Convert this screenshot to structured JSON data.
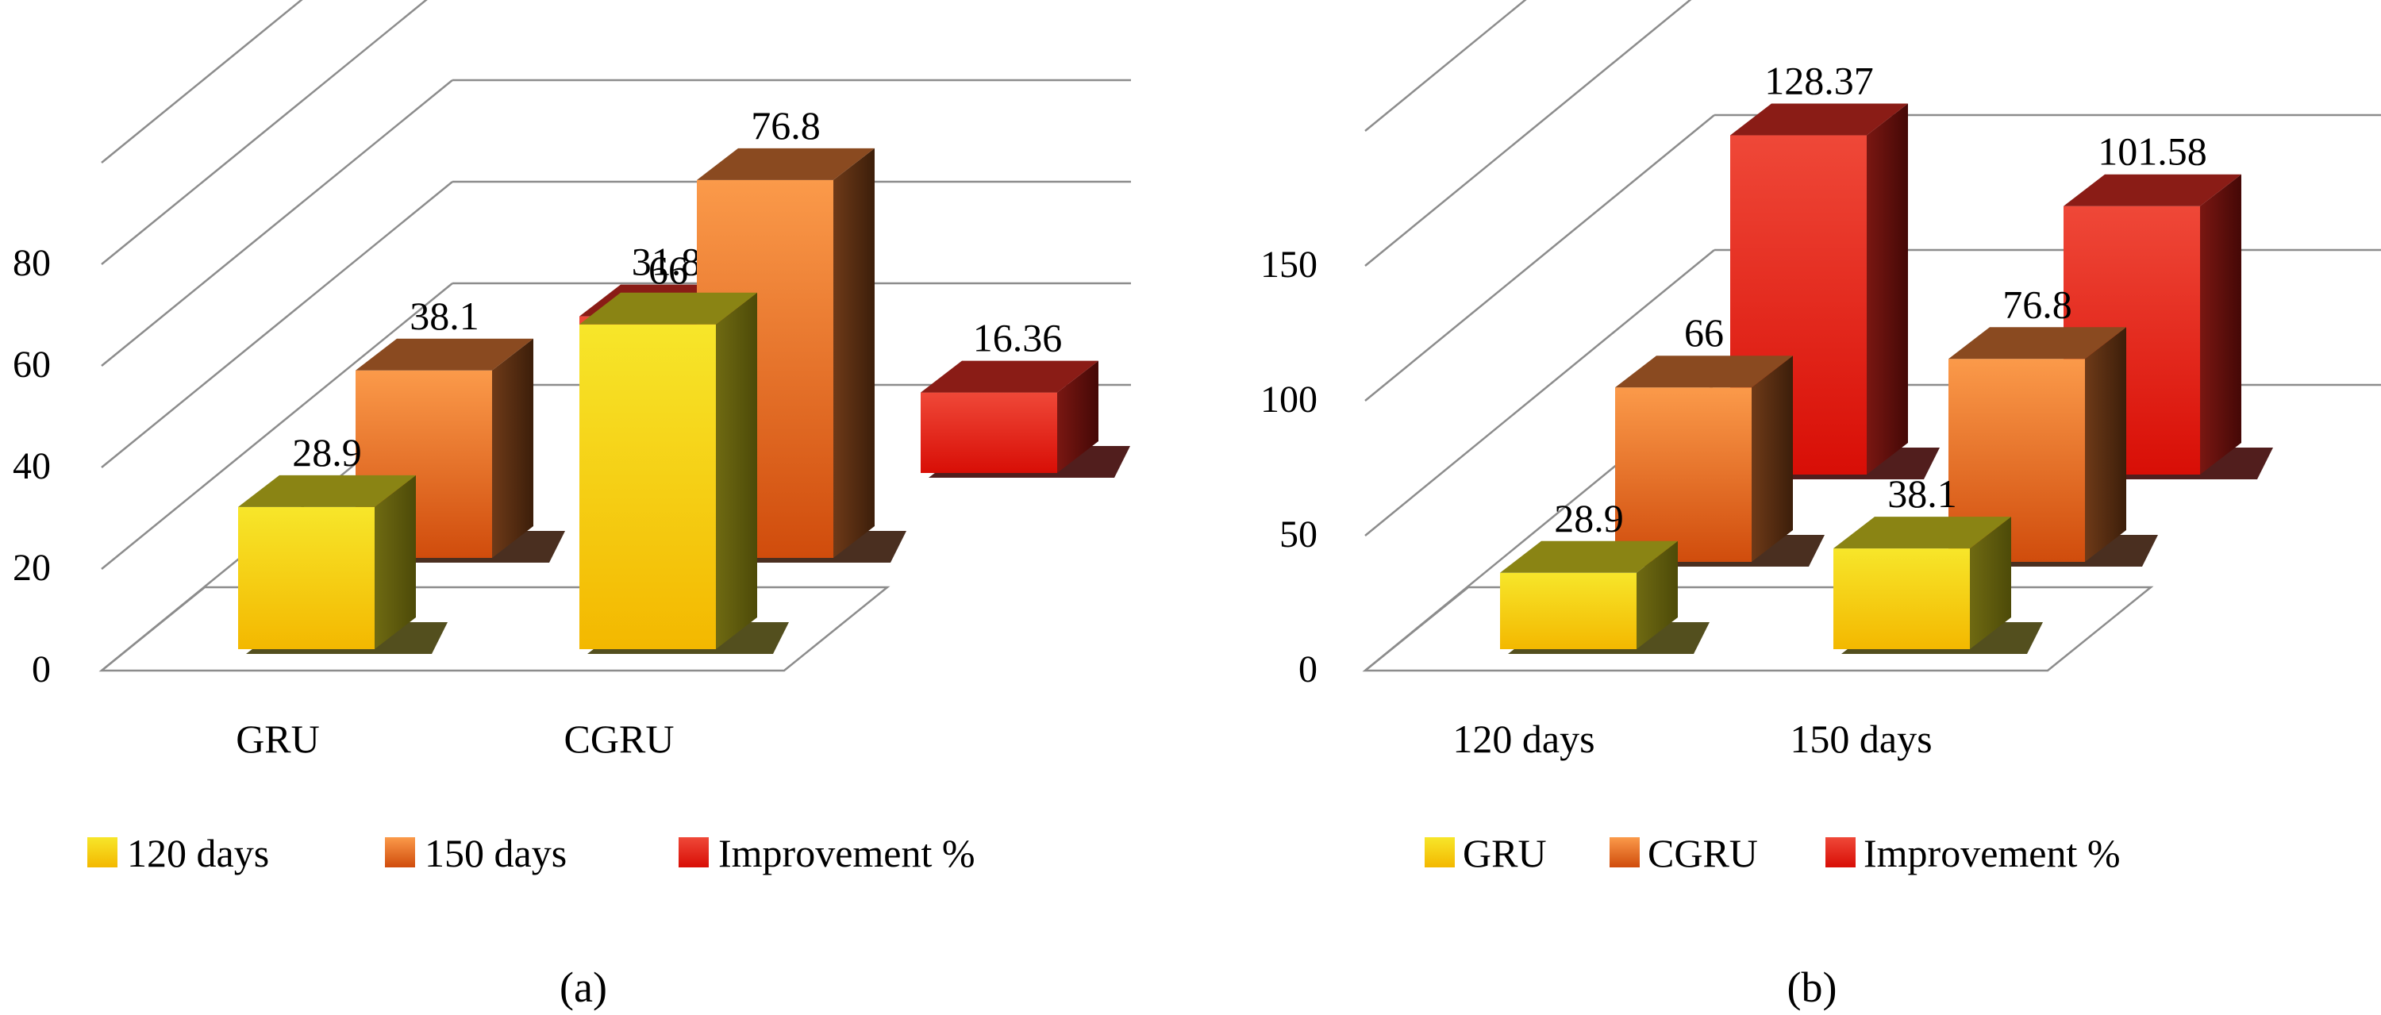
{
  "chart_data": [
    {
      "id": "a",
      "type": "bar",
      "subtitle": "(a)",
      "categories": [
        "GRU",
        "CGRU"
      ],
      "series": [
        {
          "name": "120 days",
          "values": [
            28.9,
            66
          ],
          "value_labels": [
            "28.9",
            "66"
          ],
          "color": "#f3c614"
        },
        {
          "name": "150 days",
          "values": [
            38.1,
            76.8
          ],
          "value_labels": [
            "38.1",
            "76.8"
          ],
          "color": "#f07a2a"
        },
        {
          "name": "Improvement %",
          "values": [
            31.83,
            16.36
          ],
          "value_labels": [
            "31.83",
            "16.36"
          ],
          "color": "#e62a1e"
        }
      ],
      "y_ticks": [
        0,
        20,
        40,
        60,
        80
      ],
      "ylim": [
        0,
        100
      ]
    },
    {
      "id": "b",
      "type": "bar",
      "subtitle": "(b)",
      "categories": [
        "120 days",
        "150 days"
      ],
      "series": [
        {
          "name": "GRU",
          "values": [
            28.9,
            38.1
          ],
          "value_labels": [
            "28.9",
            "38.1"
          ],
          "color": "#f3c614"
        },
        {
          "name": "CGRU",
          "values": [
            66,
            76.8
          ],
          "value_labels": [
            "66",
            "76.8"
          ],
          "color": "#f07a2a"
        },
        {
          "name": "Improvement %",
          "values": [
            128.37,
            101.58
          ],
          "value_labels": [
            "128.37",
            "101.58"
          ],
          "color": "#e62a1e"
        }
      ],
      "y_ticks": [
        0,
        50,
        100,
        150
      ],
      "ylim": [
        0,
        200
      ]
    }
  ]
}
